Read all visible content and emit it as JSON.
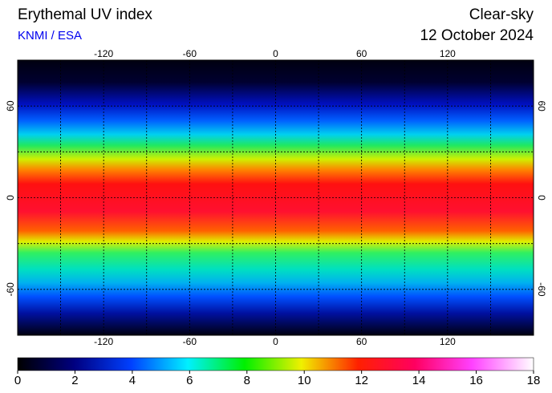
{
  "header": {
    "title": "Erythemal UV index",
    "source": "KNMI / ESA",
    "mode": "Clear-sky",
    "date": "12 October 2024"
  },
  "map": {
    "lonlim": [
      -180,
      180
    ],
    "latlim": [
      -90,
      90
    ],
    "lon_ticks": [
      -120,
      -60,
      0,
      60,
      120
    ],
    "lat_ticks": [
      60,
      0,
      -60
    ],
    "grid_lon": [
      -150,
      -120,
      -90,
      -60,
      -30,
      0,
      30,
      60,
      90,
      120,
      150
    ],
    "grid_lat": [
      60,
      30,
      0,
      -30,
      -60
    ]
  },
  "colorbar": {
    "lim": [
      0,
      18
    ],
    "ticks": [
      0,
      2,
      4,
      6,
      8,
      10,
      12,
      14,
      16,
      18
    ]
  }
}
